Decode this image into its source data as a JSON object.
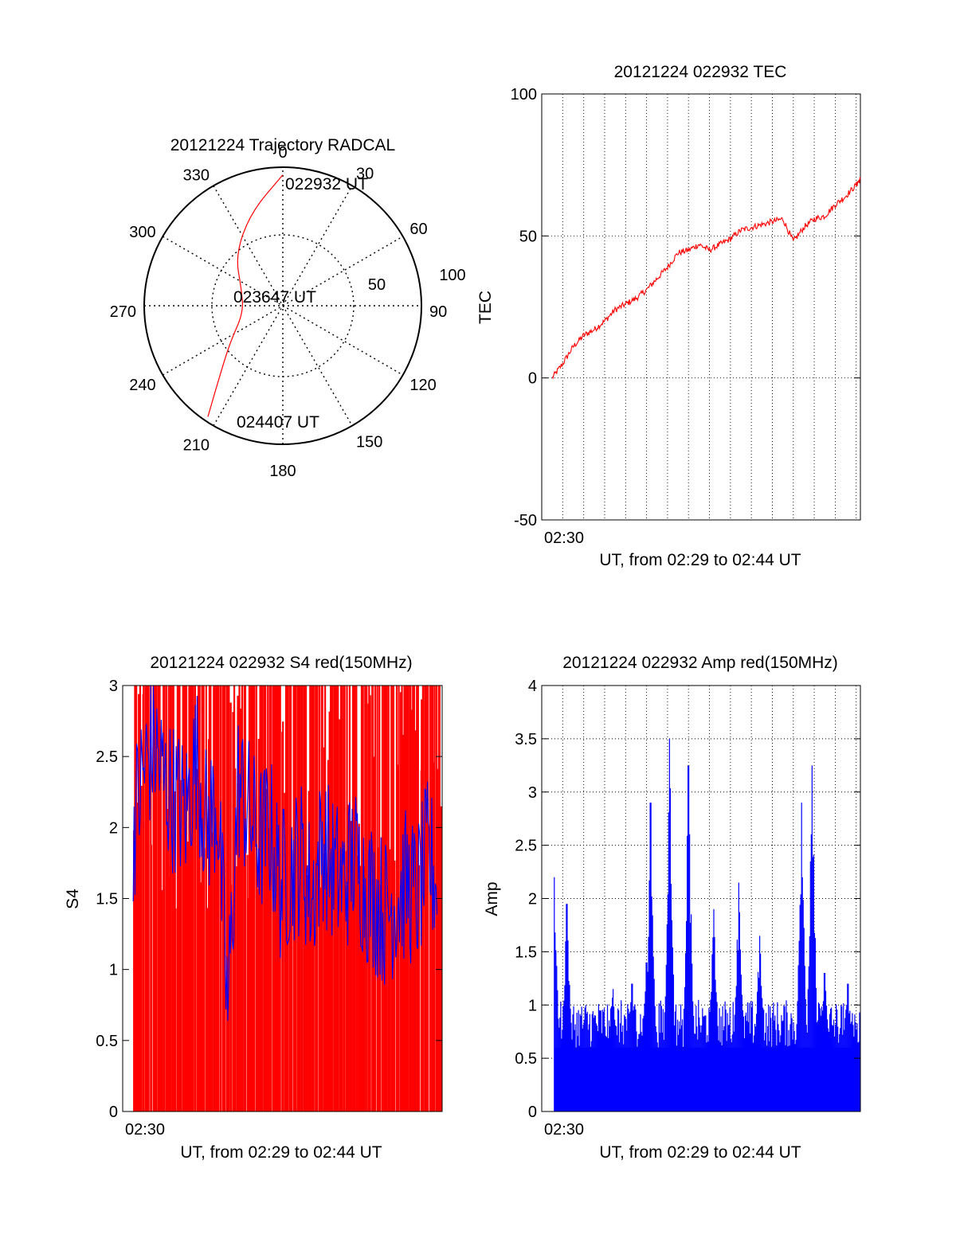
{
  "colors": {
    "red": "#ff0000",
    "blue": "#0000ff",
    "axis": "#000000",
    "grid": "#000000"
  },
  "chart_data": [
    {
      "id": "trajectory",
      "type": "polar",
      "title": "20121224 Trajectory RADCAL",
      "azimuth_labels": [
        "0",
        "30",
        "60",
        "90",
        "120",
        "150",
        "180",
        "210",
        "240",
        "270",
        "300",
        "330"
      ],
      "radial_labels": [
        "50",
        "100"
      ],
      "grid": true,
      "track": {
        "color": "red",
        "points": [
          {
            "az": 0,
            "el": 5
          },
          {
            "az": 341,
            "el": 26
          },
          {
            "az": 317,
            "el": 45
          },
          {
            "az": 292,
            "el": 61
          },
          {
            "az": 260,
            "el": 64
          },
          {
            "az": 235,
            "el": 48
          },
          {
            "az": 220,
            "el": 24
          },
          {
            "az": 214,
            "el": 3
          }
        ]
      },
      "annotations": [
        {
          "text": "022932 UT"
        },
        {
          "text": "023647 UT"
        },
        {
          "text": "024407 UT"
        }
      ]
    },
    {
      "id": "tec",
      "type": "line",
      "title": "20121224 022932 TEC",
      "xlabel": "UT, from 02:29 to 02:44 UT",
      "ylabel": "TEC",
      "xlim": [
        0,
        15.2
      ],
      "ylim": [
        -50,
        100
      ],
      "yticks": [
        -50,
        0,
        50,
        100
      ],
      "xtick_label": {
        "x": 1,
        "text": "02:30"
      },
      "grid": true,
      "series": [
        {
          "color": "red",
          "x": [
            0.5,
            1,
            1.5,
            2,
            2.5,
            3,
            3.5,
            4,
            4.5,
            5,
            5.5,
            6,
            6.5,
            7,
            7.5,
            8,
            8.5,
            9,
            9.5,
            10,
            10.5,
            11,
            11.5,
            12,
            12.5,
            13,
            13.5,
            14,
            14.5,
            15,
            15.2
          ],
          "y": [
            0,
            5,
            11,
            15,
            17,
            20,
            24,
            26,
            28,
            31,
            35,
            39,
            44,
            45,
            47,
            45,
            47,
            49,
            52,
            53,
            54,
            55,
            56,
            48,
            53,
            56,
            57,
            61,
            64,
            68,
            70
          ]
        }
      ]
    },
    {
      "id": "s4",
      "type": "line",
      "title": "20121224 022932 S4 red(150MHz)",
      "xlabel": "UT, from 02:29 to 02:44 UT",
      "ylabel": "S4",
      "xlim": [
        0,
        15.2
      ],
      "ylim": [
        0,
        3
      ],
      "yticks": [
        0,
        0.5,
        1,
        1.5,
        2,
        2.5,
        3
      ],
      "xtick_label": {
        "x": 1,
        "text": "02:30"
      },
      "grid": false,
      "series": [
        {
          "color": "red",
          "style": "dense-spikes",
          "x_range": [
            0.5,
            15.2
          ],
          "y_range": [
            0,
            3
          ]
        },
        {
          "color": "blue",
          "x": [
            0.5,
            1,
            1.5,
            2,
            2.5,
            3,
            3.5,
            4,
            4.5,
            5,
            5.5,
            6,
            6.5,
            7,
            7.5,
            8,
            8.5,
            9,
            9.5,
            10,
            10.5,
            11,
            11.5,
            12,
            12.5,
            13,
            13.5,
            14,
            14.5,
            15
          ],
          "y": [
            2.0,
            2.4,
            2.6,
            2.3,
            2.2,
            2.1,
            2.5,
            2.0,
            2.2,
            0.7,
            2.3,
            2.1,
            1.9,
            2.0,
            1.6,
            1.7,
            1.8,
            1.5,
            1.9,
            1.7,
            1.6,
            1.8,
            1.6,
            1.5,
            1.4,
            1.5,
            1.6,
            1.5,
            1.8,
            1.6
          ]
        }
      ]
    },
    {
      "id": "amp",
      "type": "line",
      "title": "20121224 022932 Amp red(150MHz)",
      "xlabel": "UT, from 02:29 to 02:44 UT",
      "ylabel": "Amp",
      "xlim": [
        0,
        15.2
      ],
      "ylim": [
        0,
        4
      ],
      "yticks": [
        0,
        0.5,
        1,
        1.5,
        2,
        2.5,
        3,
        3.5,
        4
      ],
      "yticklabels": [
        "0",
        "0.5",
        "1",
        "1.5",
        "2",
        "2.5",
        "3",
        "3.5",
        "4"
      ],
      "xtick_label": {
        "x": 1,
        "text": "02:30"
      },
      "grid": true,
      "series": [
        {
          "color": "blue",
          "style": "dense-spikes",
          "baseline_top": 0.6,
          "peaks": [
            {
              "x": 0.6,
              "y": 2.2
            },
            {
              "x": 1.2,
              "y": 1.95
            },
            {
              "x": 3.4,
              "y": 1.15
            },
            {
              "x": 4.3,
              "y": 1.2
            },
            {
              "x": 5.0,
              "y": 1.4
            },
            {
              "x": 5.2,
              "y": 2.9
            },
            {
              "x": 6.1,
              "y": 3.5
            },
            {
              "x": 7.0,
              "y": 3.25
            },
            {
              "x": 8.2,
              "y": 1.9
            },
            {
              "x": 9.4,
              "y": 2.15
            },
            {
              "x": 10.4,
              "y": 1.65
            },
            {
              "x": 12.4,
              "y": 2.9
            },
            {
              "x": 12.9,
              "y": 3.25
            },
            {
              "x": 13.5,
              "y": 1.3
            },
            {
              "x": 14.6,
              "y": 1.2
            }
          ]
        }
      ]
    }
  ]
}
